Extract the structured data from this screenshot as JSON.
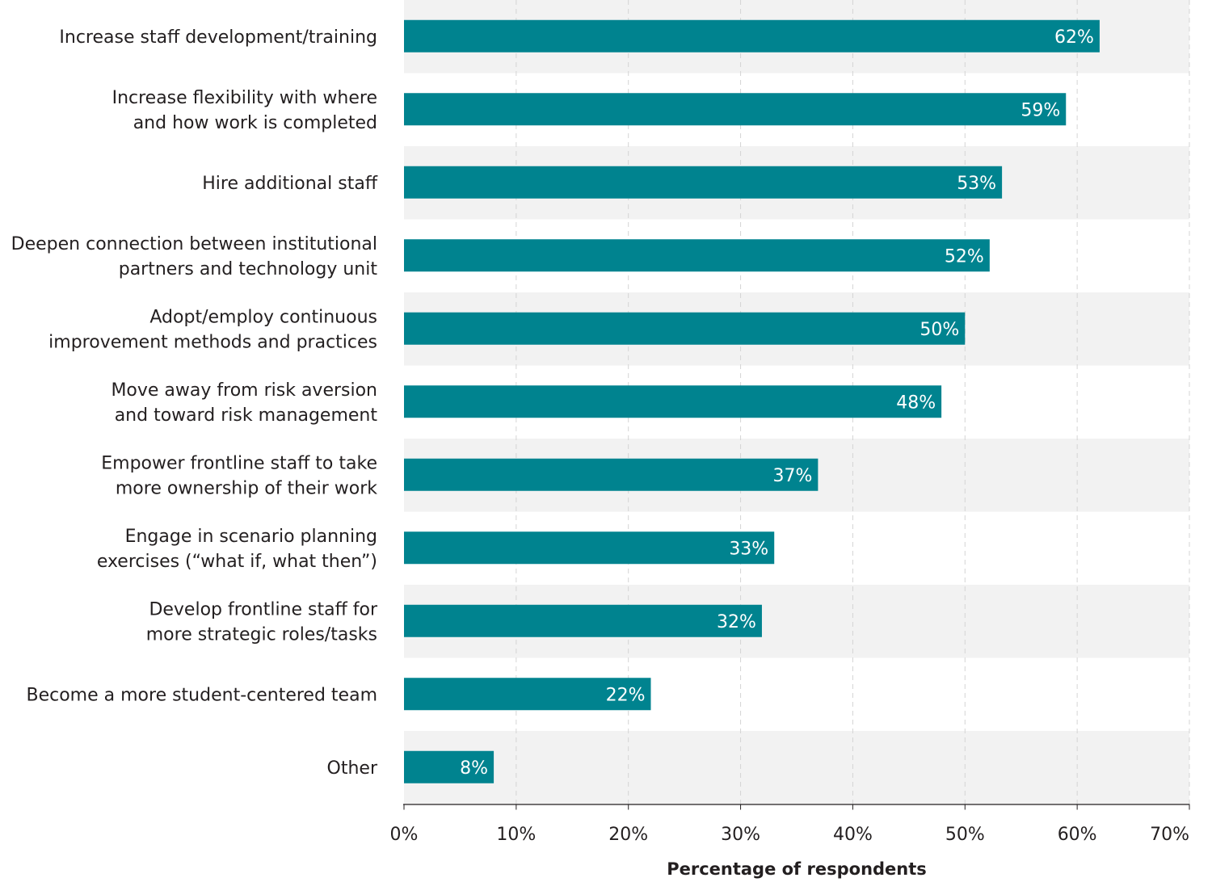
{
  "chart_data": {
    "type": "bar",
    "orientation": "horizontal",
    "categories": [
      [
        "Increase staff development/training"
      ],
      [
        "Increase flexibility with where",
        "and how work is completed"
      ],
      [
        "Hire additional staff"
      ],
      [
        "Deepen connection between institutional",
        "partners and technology unit"
      ],
      [
        "Adopt/employ continuous",
        "improvement methods and practices"
      ],
      [
        "Move away from risk aversion",
        "and toward risk management"
      ],
      [
        "Empower frontline staff to take",
        "more ownership of their work"
      ],
      [
        "Engage in scenario planning",
        "exercises (“what if, what then”)"
      ],
      [
        "Develop frontline staff for",
        "more strategic roles/tasks"
      ],
      [
        "Become a more student-centered team"
      ],
      [
        "Other"
      ]
    ],
    "values": [
      62,
      59,
      53.3,
      52.2,
      50,
      47.9,
      36.9,
      33,
      31.9,
      22,
      8
    ],
    "value_labels": [
      "62%",
      "59%",
      "53%",
      "52%",
      "50%",
      "48%",
      "37%",
      "33%",
      "32%",
      "22%",
      "8%"
    ],
    "xlim": [
      0,
      70
    ],
    "xticks": [
      0,
      10,
      20,
      30,
      40,
      50,
      60,
      70
    ],
    "xtick_labels": [
      "0%",
      "10%",
      "20%",
      "30%",
      "40%",
      "50%",
      "60%",
      "70%"
    ],
    "xlabel": "Percentage of respondents",
    "ylabel": "",
    "title": "",
    "grid": "vertical dashed",
    "bar_color": "#00838f",
    "band_color": "#f2f2f2",
    "grid_color": "#d4d4d4",
    "axis_color": "#231f20",
    "text_color": "#231f20"
  }
}
